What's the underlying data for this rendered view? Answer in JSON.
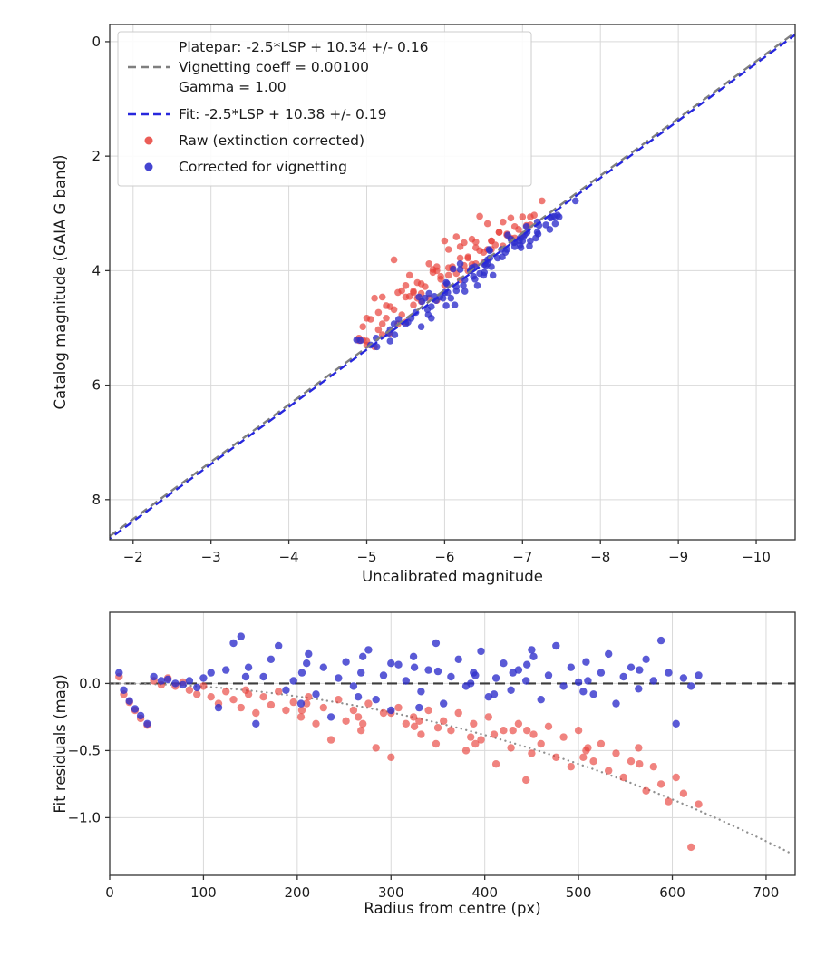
{
  "chart_data": [
    {
      "type": "scatter",
      "xlabel": "Uncalibrated magnitude",
      "ylabel": "Catalog magnitude (GAIA G band)",
      "xlim": [
        -1.7,
        -10.5
      ],
      "ylim": [
        -0.3,
        8.7
      ],
      "x_ticks": {
        "values": [
          -2,
          -3,
          -4,
          -5,
          -6,
          -7,
          -8,
          -9,
          -10
        ],
        "labels": [
          "−2",
          "−3",
          "−4",
          "−5",
          "−6",
          "−7",
          "−8",
          "−9",
          "−10"
        ]
      },
      "y_ticks": {
        "values": [
          0,
          2,
          4,
          6,
          8
        ],
        "labels": [
          "0",
          "2",
          "4",
          "6",
          "8"
        ]
      },
      "grid": true,
      "lines": [
        {
          "name": "platepar",
          "slope": 1,
          "intercept": 10.34,
          "color": "#7f7f7f",
          "dash": "9 5",
          "offset": 0,
          "width": 2.4
        },
        {
          "name": "fit",
          "slope": 1,
          "intercept": 10.38,
          "color": "#2727dd",
          "dash": "9 5",
          "offset": 7,
          "width": 2.4
        }
      ],
      "series": [
        {
          "name": "raw",
          "label": "Raw (extinction corrected)",
          "color": "#e8413a",
          "marker": "dot"
        },
        {
          "name": "corrected",
          "label": "Corrected for vignetting",
          "color": "#3131cc",
          "marker": "dot"
        }
      ],
      "legend": {
        "position": "upper left",
        "entries": [
          {
            "type": "line",
            "color": "#7f7f7f",
            "dash": "9 5",
            "label": "Platepar: -2.5*LSP + 10.34 +/- 0.16",
            "extra_lines": [
              "Vignetting coeff = 0.00100",
              "Gamma = 1.00"
            ]
          },
          {
            "type": "line",
            "color": "#2727dd",
            "dash": "9 5",
            "label": "Fit: -2.5*LSP + 10.38 +/- 0.19",
            "extra_lines": []
          },
          {
            "type": "dot",
            "color": "#e8413a",
            "label": "Raw (extinction corrected)",
            "extra_lines": []
          },
          {
            "type": "dot",
            "color": "#3131cc",
            "label": "Corrected for vignetting",
            "extra_lines": []
          }
        ]
      }
    },
    {
      "type": "scatter",
      "xlabel": "Radius from centre (px)",
      "ylabel": "Fit residuals (mag)",
      "xlim": [
        0,
        731
      ],
      "ylim": [
        0.53,
        -1.43
      ],
      "x_ticks": {
        "values": [
          0,
          100,
          200,
          300,
          400,
          500,
          600,
          700
        ],
        "labels": [
          "0",
          "100",
          "200",
          "300",
          "400",
          "500",
          "600",
          "700"
        ]
      },
      "y_ticks": {
        "values": [
          0.0,
          -0.5,
          -1.0
        ],
        "labels": [
          "0.0",
          "−0.5",
          "−1.0"
        ]
      },
      "grid": true,
      "zero_line": {
        "value": 0.0,
        "color": "#3d3d3d",
        "dash": "11 6",
        "width": 2.2
      },
      "model_curve": {
        "name": "vignetting-model",
        "coeff": -2.4e-06,
        "color": "#909090",
        "style": "dotted",
        "width": 2.3
      },
      "series": [
        {
          "name": "raw-residuals",
          "color": "#e8413a"
        },
        {
          "name": "corrected-residuals",
          "color": "#3131cc"
        }
      ]
    }
  ],
  "stars": [
    [
      10,
      -5.1,
      0.05,
      0.08
    ],
    [
      15,
      -6.3,
      -0.08,
      -0.05
    ],
    [
      21,
      -5.7,
      -0.14,
      -0.13
    ],
    [
      27,
      -6.8,
      -0.2,
      -0.19
    ],
    [
      33,
      -4.9,
      -0.26,
      -0.24
    ],
    [
      40,
      -6.1,
      -0.31,
      -0.3
    ],
    [
      47,
      -5.5,
      0.02,
      0.05
    ],
    [
      55,
      -7.0,
      -0.01,
      0.02
    ],
    [
      62,
      -5.9,
      0.04,
      0.03
    ],
    [
      70,
      -6.5,
      -0.02,
      0.0
    ],
    [
      78,
      -5.3,
      0.01,
      -0.01
    ],
    [
      85,
      -6.9,
      -0.05,
      0.02
    ],
    [
      93,
      -5.0,
      -0.08,
      -0.03
    ],
    [
      100,
      -6.2,
      -0.02,
      0.04
    ],
    [
      108,
      -5.8,
      -0.1,
      0.08
    ],
    [
      116,
      -6.6,
      -0.15,
      -0.18
    ],
    [
      124,
      -5.2,
      -0.06,
      0.1
    ],
    [
      132,
      -6.0,
      -0.12,
      0.3
    ],
    [
      140,
      -5.6,
      -0.18,
      0.35
    ],
    [
      148,
      -7.1,
      -0.08,
      0.12
    ],
    [
      156,
      -4.95,
      -0.22,
      -0.3
    ],
    [
      164,
      -6.4,
      -0.1,
      0.05
    ],
    [
      172,
      -5.45,
      -0.16,
      0.18
    ],
    [
      180,
      -6.75,
      -0.06,
      0.28
    ],
    [
      188,
      -5.15,
      -0.2,
      -0.05
    ],
    [
      196,
      -6.35,
      -0.14,
      0.02
    ],
    [
      204,
      -5.65,
      -0.25,
      -0.15
    ],
    [
      212,
      -6.85,
      -0.1,
      0.22
    ],
    [
      220,
      -4.9,
      -0.3,
      -0.08
    ],
    [
      228,
      -6.15,
      -0.18,
      0.12
    ],
    [
      236,
      -5.5,
      -0.42,
      -0.25
    ],
    [
      244,
      -7.05,
      -0.12,
      0.04
    ],
    [
      252,
      -5.95,
      -0.28,
      0.16
    ],
    [
      260,
      -6.55,
      -0.2,
      -0.02
    ],
    [
      268,
      -5.35,
      -0.35,
      0.08
    ],
    [
      276,
      -6.95,
      -0.15,
      0.25
    ],
    [
      284,
      -5.05,
      -0.48,
      -0.12
    ],
    [
      292,
      -6.25,
      -0.22,
      0.06
    ],
    [
      300,
      -5.85,
      -0.55,
      -0.2
    ],
    [
      308,
      -6.65,
      -0.18,
      0.14
    ],
    [
      316,
      -5.25,
      -0.3,
      0.02
    ],
    [
      324,
      -6.05,
      -0.25,
      0.2
    ],
    [
      332,
      -5.55,
      -0.38,
      -0.06
    ],
    [
      340,
      -7.15,
      -0.2,
      0.1
    ],
    [
      348,
      -4.95,
      -0.45,
      0.3
    ],
    [
      356,
      -6.45,
      -0.28,
      -0.15
    ],
    [
      364,
      -5.75,
      -0.35,
      0.05
    ],
    [
      372,
      -6.8,
      -0.22,
      0.18
    ],
    [
      380,
      -5.15,
      -0.5,
      -0.02
    ],
    [
      388,
      -6.3,
      -0.3,
      0.08
    ],
    [
      396,
      -5.6,
      -0.42,
      0.24
    ],
    [
      404,
      -6.9,
      -0.25,
      -0.1
    ],
    [
      412,
      -5.4,
      -0.6,
      0.04
    ],
    [
      420,
      -6.1,
      -0.35,
      0.15
    ],
    [
      428,
      -5.9,
      -0.48,
      -0.05
    ],
    [
      436,
      -6.6,
      -0.3,
      0.1
    ],
    [
      444,
      -5.2,
      -0.72,
      0.02
    ],
    [
      452,
      -6.4,
      -0.38,
      0.2
    ],
    [
      460,
      -5.7,
      -0.45,
      -0.12
    ],
    [
      468,
      -7.0,
      -0.32,
      0.06
    ],
    [
      476,
      -5.0,
      -0.55,
      0.28
    ],
    [
      484,
      -6.2,
      -0.4,
      -0.02
    ],
    [
      492,
      -5.5,
      -0.62,
      0.12
    ],
    [
      500,
      -6.7,
      -0.35,
      0.01
    ],
    [
      508,
      -5.85,
      -0.5,
      0.16
    ],
    [
      516,
      -6.35,
      -0.58,
      -0.08
    ],
    [
      524,
      -5.3,
      -0.45,
      0.08
    ],
    [
      532,
      -6.55,
      -0.65,
      0.22
    ],
    [
      540,
      -5.65,
      -0.52,
      -0.15
    ],
    [
      548,
      -6.05,
      -0.7,
      0.05
    ],
    [
      556,
      -5.45,
      -0.58,
      0.12
    ],
    [
      564,
      -6.75,
      -0.48,
      -0.04
    ],
    [
      572,
      -5.1,
      -0.8,
      0.18
    ],
    [
      580,
      -6.25,
      -0.62,
      0.02
    ],
    [
      588,
      -5.55,
      -0.75,
      0.32
    ],
    [
      596,
      -6.45,
      -0.88,
      0.08
    ],
    [
      604,
      -5.8,
      -0.7,
      -0.3
    ],
    [
      612,
      -6.15,
      -0.82,
      0.04
    ],
    [
      620,
      -5.35,
      -1.22,
      -0.02
    ],
    [
      628,
      -6.0,
      -0.9,
      0.06
    ],
    [
      145,
      -5.4,
      -0.05,
      0.05
    ],
    [
      205,
      -6.5,
      -0.2,
      0.08
    ],
    [
      265,
      -5.2,
      -0.25,
      -0.1
    ],
    [
      325,
      -6.3,
      -0.32,
      0.12
    ],
    [
      385,
      -5.6,
      -0.4,
      0.0
    ],
    [
      445,
      -6.7,
      -0.35,
      0.14
    ],
    [
      505,
      -5.9,
      -0.55,
      -0.06
    ],
    [
      565,
      -6.2,
      -0.6,
      0.1
    ],
    [
      210,
      -5.0,
      -0.15,
      0.15
    ],
    [
      270,
      -6.6,
      -0.3,
      0.2
    ],
    [
      330,
      -5.7,
      -0.28,
      -0.18
    ],
    [
      390,
      -6.85,
      -0.45,
      0.06
    ],
    [
      450,
      -5.25,
      -0.52,
      0.25
    ],
    [
      510,
      -6.4,
      -0.48,
      0.02
    ],
    [
      350,
      -5.95,
      -0.33,
      0.09
    ],
    [
      410,
      -6.05,
      -0.38,
      -0.08
    ],
    [
      430,
      -7.25,
      -0.35,
      0.08
    ],
    [
      300,
      -7.1,
      -0.22,
      0.15
    ]
  ]
}
